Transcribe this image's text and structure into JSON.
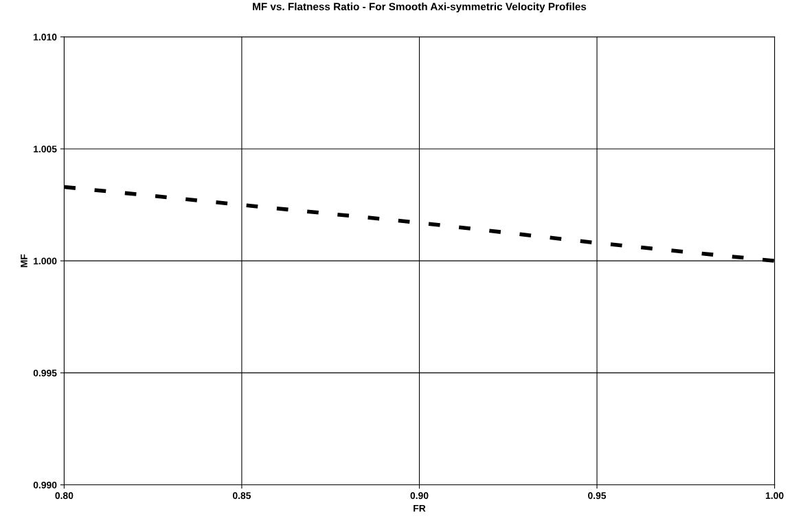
{
  "chart_data": {
    "type": "line",
    "title": "MF vs. Flatness Ratio - For Smooth Axi-symmetric Velocity Profiles",
    "xlabel": "FR",
    "ylabel": "MF",
    "x": [
      0.8,
      0.85,
      0.9,
      0.95,
      1.0
    ],
    "series": [
      {
        "color": "#000000",
        "values": [
          1.0033,
          1.0025,
          1.0017,
          1.0008,
          1.0
        ]
      }
    ],
    "xlim": [
      0.8,
      1.0
    ],
    "xticks": [
      {
        "value": 0.8,
        "label": "0.80"
      },
      {
        "value": 0.85,
        "label": "0.85"
      },
      {
        "value": 0.9,
        "label": "0.90"
      },
      {
        "value": 0.95,
        "label": "0.95"
      },
      {
        "value": 1.0,
        "label": "1.00"
      }
    ],
    "ylim": [
      0.99,
      1.01
    ],
    "yticks": [
      {
        "value": 0.99,
        "label": "0.990"
      },
      {
        "value": 0.995,
        "label": "0.995"
      },
      {
        "value": 1.0,
        "label": "1.000"
      },
      {
        "value": 1.005,
        "label": "1.005"
      },
      {
        "value": 1.01,
        "label": "1.010"
      }
    ],
    "grid": true,
    "line_style": "dashed",
    "marker": "none",
    "legend": false
  }
}
